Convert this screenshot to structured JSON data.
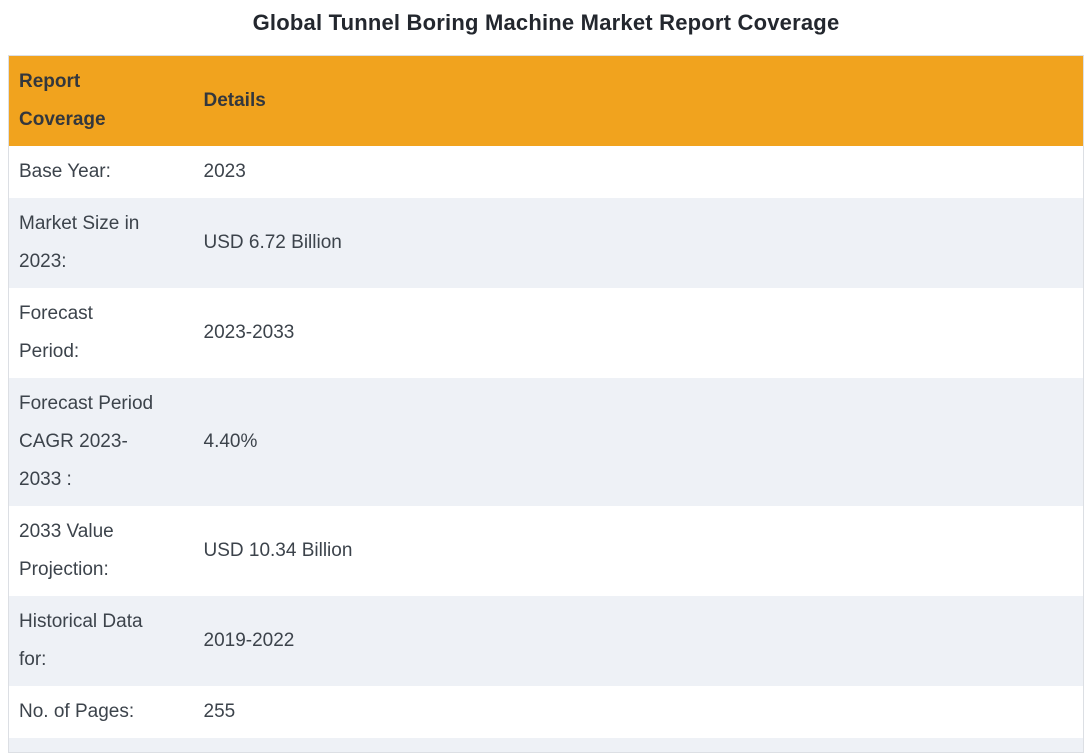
{
  "title": "Global Tunnel Boring Machine Market Report Coverage",
  "table": {
    "columns": [
      {
        "label": "Report\nCoverage"
      },
      {
        "label": "Details"
      }
    ],
    "rows": [
      {
        "label": "Base Year:",
        "value": "2023"
      },
      {
        "label": "Market Size in\n2023:",
        "value": "USD 6.72 Billion"
      },
      {
        "label": "Forecast\nPeriod:",
        "value": "2023-2033"
      },
      {
        "label": "Forecast Period\nCAGR 2023-\n2033 :",
        "value": "4.40%"
      },
      {
        "label": "2033 Value\nProjection:",
        "value": "USD 10.34 Billion"
      },
      {
        "label": "Historical Data\nfor:",
        "value": "2019-2022"
      },
      {
        "label": "No. of Pages:",
        "value": "255"
      }
    ]
  },
  "theme": {
    "header_bg": "#F1A31E",
    "row_bg": "#FFFFFF",
    "row_alt_bg": "#EEF1F6",
    "header_text": "#33373D",
    "body_text": "#3C434B",
    "title_text": "#23272E",
    "border": "#DCDFE4",
    "page_bg": "#FFFFFF"
  }
}
